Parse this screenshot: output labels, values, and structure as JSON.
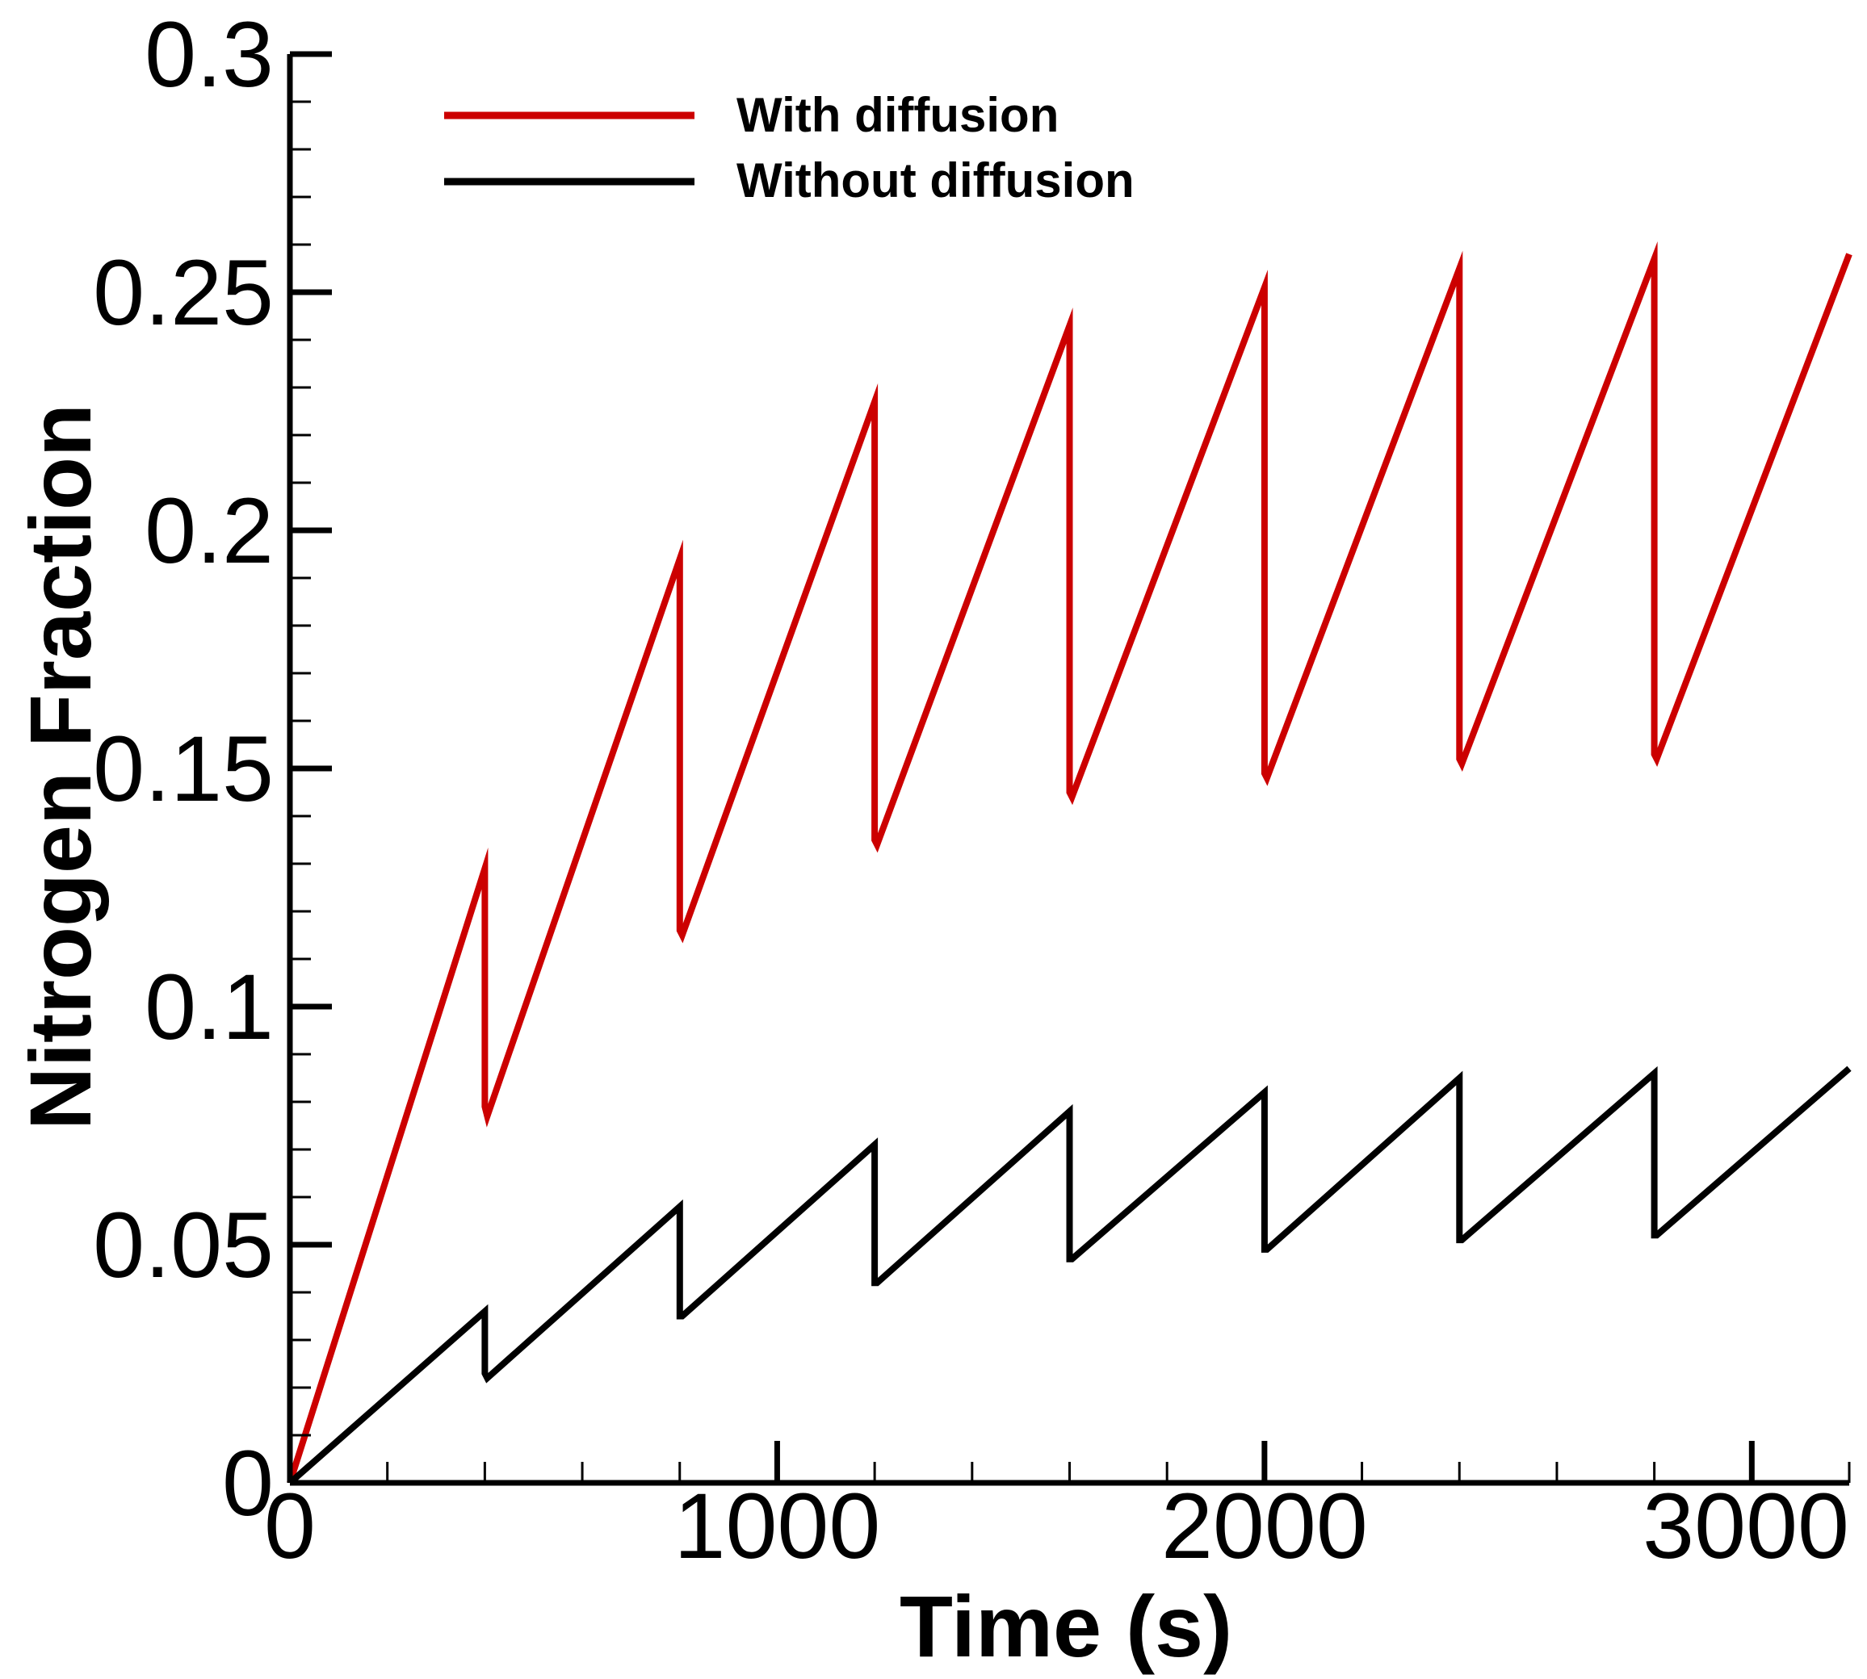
{
  "chart_data": {
    "type": "line",
    "title": "",
    "xlabel": "Time (s)",
    "ylabel": "Nitrogen Fraction",
    "xlim": [
      0,
      3200
    ],
    "ylim": [
      0,
      0.3
    ],
    "x_ticks": [
      0,
      1000,
      2000,
      3000
    ],
    "x_tick_labels": [
      "0",
      "1000",
      "2000",
      "3000"
    ],
    "x_minor_step": 200,
    "y_ticks": [
      0,
      0.05,
      0.1,
      0.15,
      0.2,
      0.25,
      0.3
    ],
    "y_tick_labels": [
      "0",
      "0.05",
      "0.1",
      "0.15",
      "0.2",
      "0.25",
      "0.3"
    ],
    "y_minor_step": 0.01,
    "grid": false,
    "legend_position": "top-left",
    "series": [
      {
        "name": "With diffusion",
        "color": "#cc0000",
        "x": [
          0,
          400,
          400,
          405,
          800,
          800,
          805,
          1200,
          1200,
          1205,
          1600,
          1600,
          1605,
          2000,
          2000,
          2005,
          2400,
          2400,
          2405,
          2800,
          2800,
          2805,
          3200
        ],
        "y": [
          0,
          0.129,
          0.079,
          0.077,
          0.194,
          0.116,
          0.115,
          0.227,
          0.135,
          0.134,
          0.243,
          0.145,
          0.144,
          0.251,
          0.149,
          0.148,
          0.255,
          0.152,
          0.151,
          0.257,
          0.153,
          0.152,
          0.258
        ]
      },
      {
        "name": "Without diffusion",
        "color": "#000000",
        "x": [
          0,
          400,
          400,
          405,
          800,
          800,
          805,
          1200,
          1200,
          1205,
          1600,
          1600,
          1605,
          2000,
          2000,
          2005,
          2400,
          2400,
          2405,
          2800,
          2800,
          2805,
          3200
        ],
        "y": [
          0,
          0.036,
          0.023,
          0.022,
          0.058,
          0.035,
          0.035,
          0.071,
          0.042,
          0.042,
          0.078,
          0.047,
          0.047,
          0.082,
          0.049,
          0.049,
          0.085,
          0.051,
          0.051,
          0.086,
          0.052,
          0.052,
          0.087
        ]
      }
    ]
  }
}
